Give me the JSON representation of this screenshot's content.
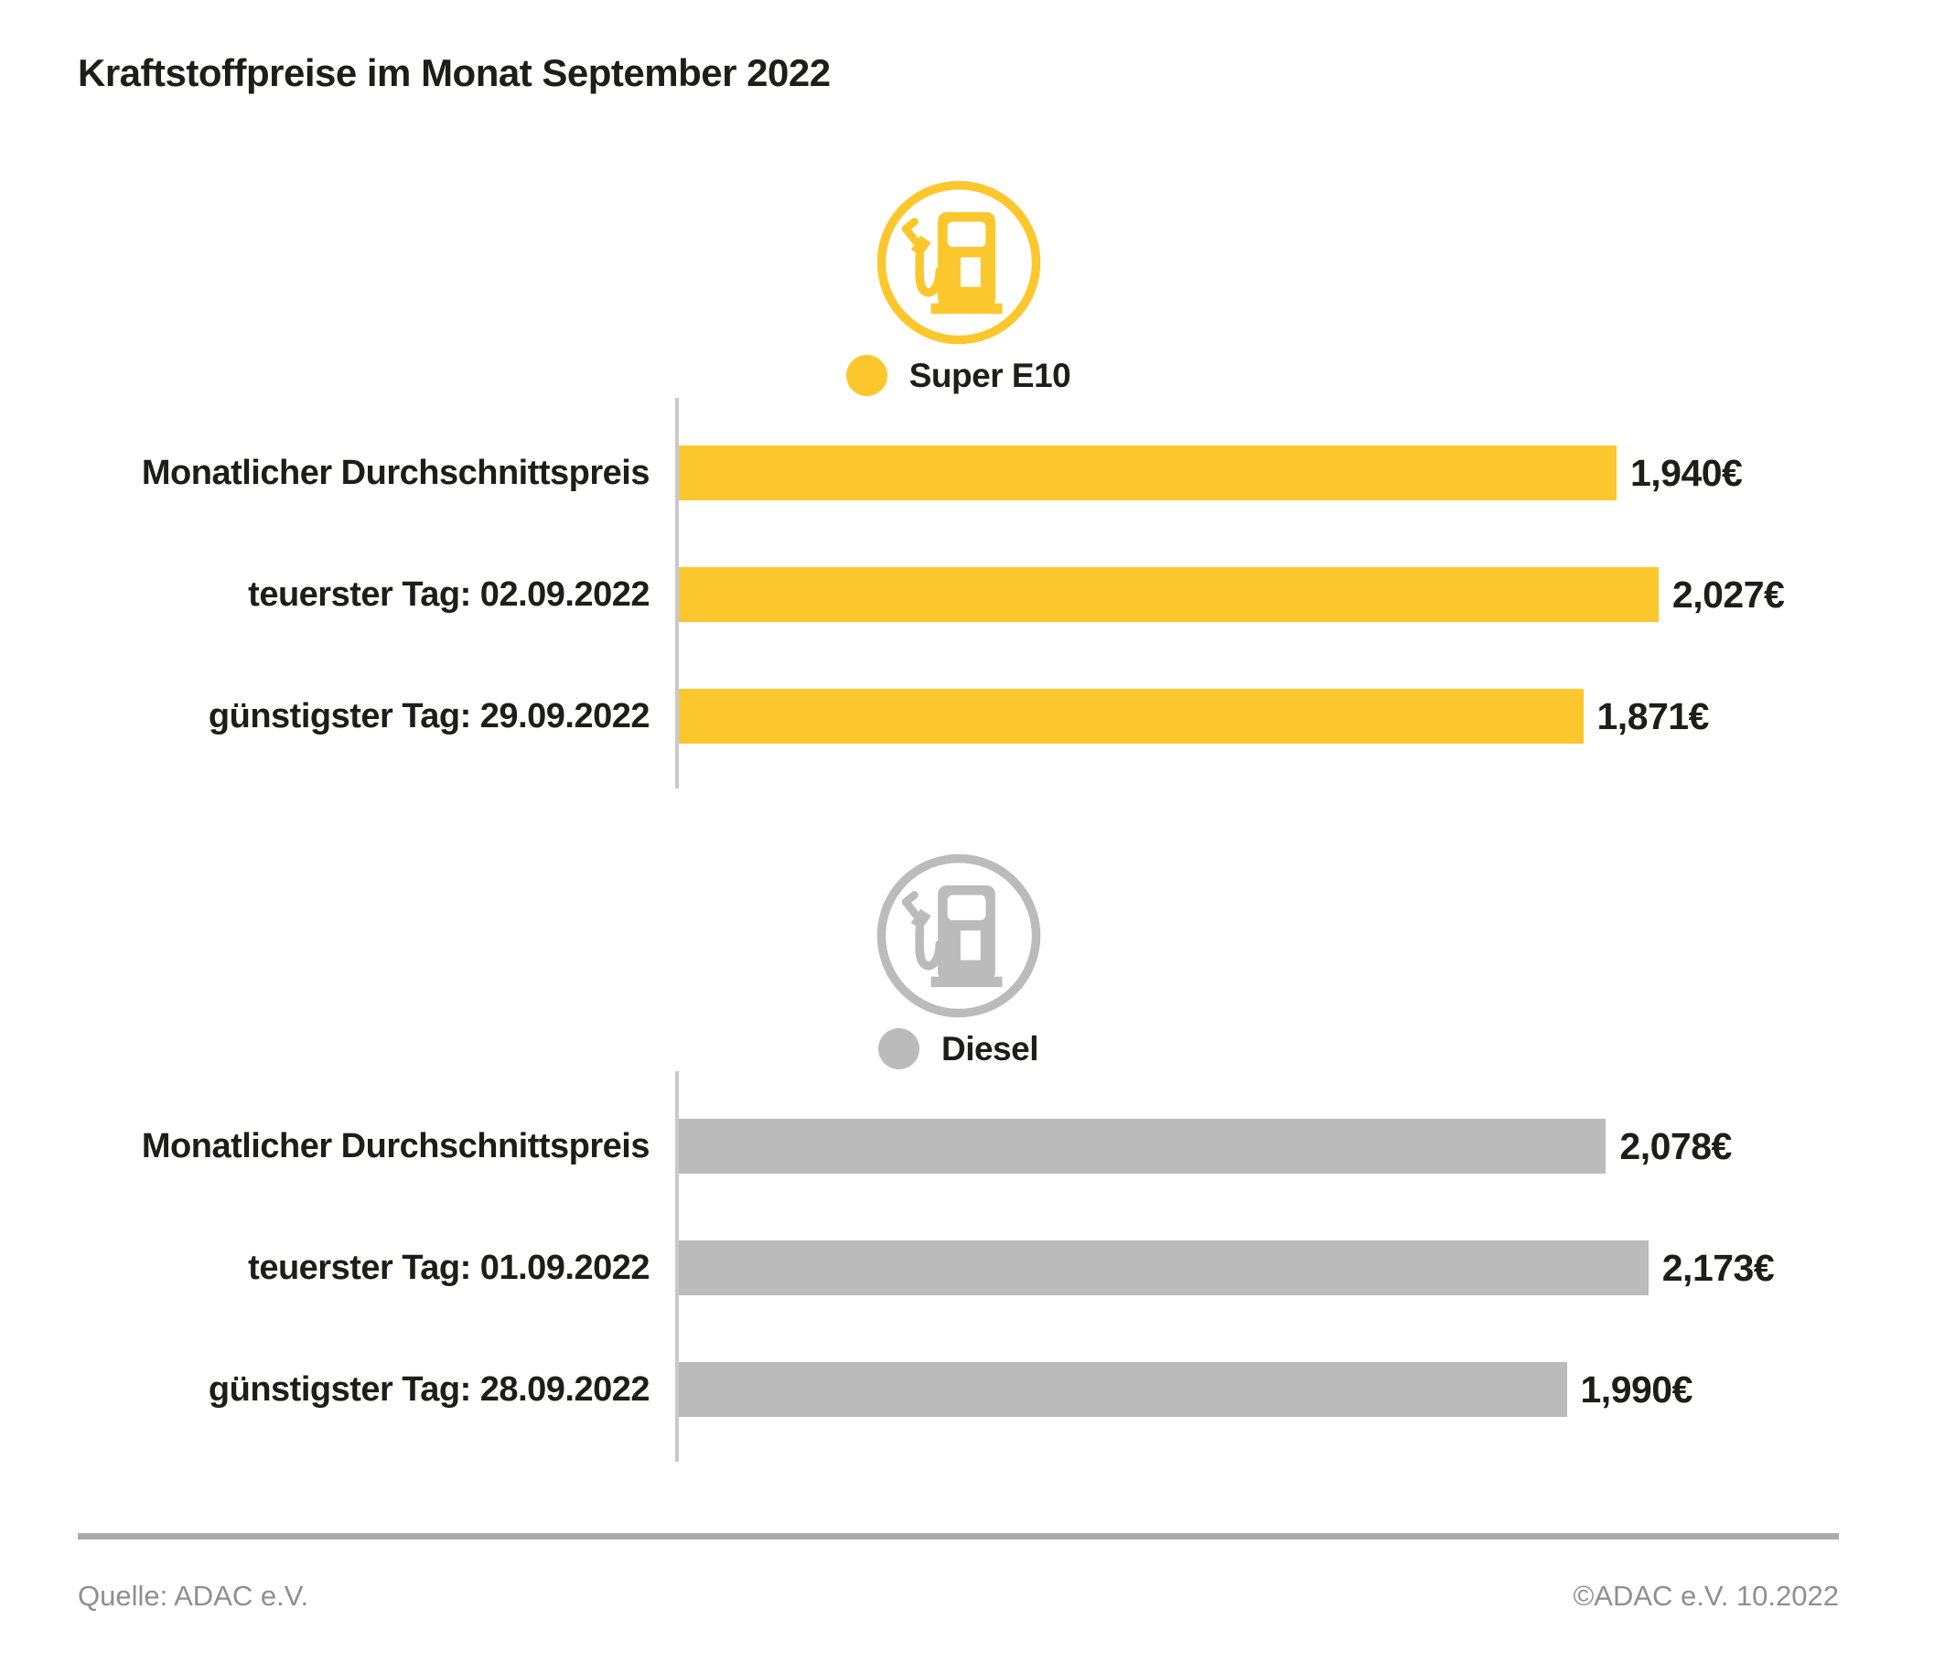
{
  "title": "Kraftstoffpreise im Monat September 2022",
  "colors": {
    "super_e10": "#FCC72C",
    "diesel": "#BBBBBB",
    "axis_line": "#C9C9C9",
    "divider": "#ABABAB",
    "footer_text": "#8F8F8F",
    "text": "#1D1D1B"
  },
  "chart_data": [
    {
      "type": "bar",
      "orientation": "horizontal",
      "series_name": "Super E10",
      "icon": "fuel-pump-icon",
      "color": "#FCC72C",
      "legend_position": "top-center",
      "grid": false,
      "unit": "€ pro Liter",
      "xlim": [
        0,
        2.4
      ],
      "categories": [
        "Monatlicher Durchschnittspreis",
        "teuerster Tag: 02.09.2022",
        "günstigster Tag: 29.09.2022"
      ],
      "values": [
        1.94,
        2.027,
        1.871
      ],
      "value_labels": [
        "1,940€",
        "2,027€",
        "1,871€"
      ]
    },
    {
      "type": "bar",
      "orientation": "horizontal",
      "series_name": "Diesel",
      "icon": "fuel-pump-icon",
      "color": "#BBBBBB",
      "legend_position": "top-center",
      "grid": false,
      "unit": "€ pro Liter",
      "xlim": [
        0,
        2.6
      ],
      "categories": [
        "Monatlicher Durchschnittspreis",
        "teuerster Tag: 01.09.2022",
        "günstigster Tag: 28.09.2022"
      ],
      "values": [
        2.078,
        2.173,
        1.99
      ],
      "value_labels": [
        "2,078€",
        "2,173€",
        "1,990€"
      ]
    }
  ],
  "footer": {
    "source": "Quelle: ADAC e.V.",
    "copyright": "©ADAC e.V. 10.2022"
  }
}
